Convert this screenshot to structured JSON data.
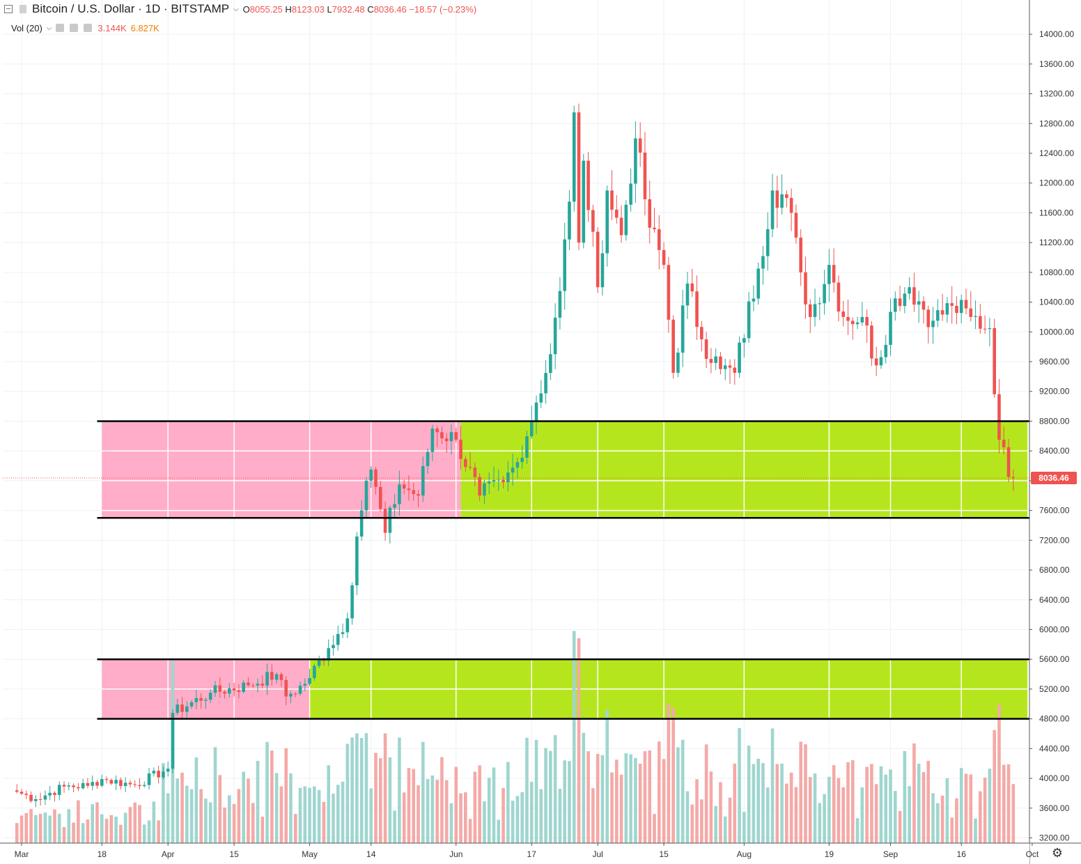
{
  "header": {
    "symbol": "Bitcoin / U.S. Dollar · 1D · BITSTAMP",
    "open_label": "O",
    "open": "8055.25",
    "high_label": "H",
    "high": "8123.03",
    "low_label": "L",
    "low": "7932.48",
    "close_label": "C",
    "close": "8036.46",
    "change": "−18.57 (−0.23%)",
    "vol_label": "Vol (20)",
    "vol_value": "3.144K",
    "vol_ma": "6.827K"
  },
  "price_tag": "8036.46",
  "colors": {
    "up": "#26a69a",
    "down": "#ef5350",
    "vol_up": "#9fd6cf",
    "vol_down": "#f4a9a6",
    "zone_pink": "#ffadc8",
    "zone_green": "#b5e61d",
    "vol_ma_text": "#f57c00"
  },
  "chart_data": {
    "type": "candlestick",
    "y_ticks": [
      "14000.00",
      "13600.00",
      "13200.00",
      "12800.00",
      "12400.00",
      "12000.00",
      "11600.00",
      "11200.00",
      "10800.00",
      "10400.00",
      "10000.00",
      "9600.00",
      "9200.00",
      "8800.00",
      "8400.00",
      "8000.00",
      "7600.00",
      "7200.00",
      "6800.00",
      "6400.00",
      "6000.00",
      "5600.00",
      "5200.00",
      "4800.00",
      "4400.00",
      "4000.00",
      "3600.00",
      "3200.00"
    ],
    "ylim": [
      3130,
      14460
    ],
    "x_labels": [
      {
        "label": "Mar",
        "date": "2019-03-01"
      },
      {
        "label": "18",
        "date": "2019-03-18"
      },
      {
        "label": "Apr",
        "date": "2019-04-01"
      },
      {
        "label": "15",
        "date": "2019-04-15"
      },
      {
        "label": "May",
        "date": "2019-05-01"
      },
      {
        "label": "14",
        "date": "2019-05-14"
      },
      {
        "label": "Jun",
        "date": "2019-06-01"
      },
      {
        "label": "17",
        "date": "2019-06-17"
      },
      {
        "label": "Jul",
        "date": "2019-07-01"
      },
      {
        "label": "15",
        "date": "2019-07-15"
      },
      {
        "label": "Aug",
        "date": "2019-08-01"
      },
      {
        "label": "19",
        "date": "2019-08-19"
      },
      {
        "label": "Sep",
        "date": "2019-09-01"
      },
      {
        "label": "16",
        "date": "2019-09-16"
      },
      {
        "label": "Oct",
        "date": "2019-10-01"
      }
    ],
    "first_date": "2019-02-28",
    "last_date": "2019-09-27",
    "anchors": [
      [
        "2019-02-28",
        3820
      ],
      [
        "2019-03-04",
        3720
      ],
      [
        "2019-03-10",
        3890
      ],
      [
        "2019-03-15",
        3900
      ],
      [
        "2019-03-18",
        3990
      ],
      [
        "2019-03-25",
        3910
      ],
      [
        "2019-04-01",
        4130
      ],
      [
        "2019-04-02",
        4880
      ],
      [
        "2019-04-10",
        5150
      ],
      [
        "2019-04-18",
        5250
      ],
      [
        "2019-04-24",
        5400
      ],
      [
        "2019-04-26",
        5100
      ],
      [
        "2019-04-30",
        5270
      ],
      [
        "2019-05-05",
        5750
      ],
      [
        "2019-05-09",
        6150
      ],
      [
        "2019-05-11",
        7250
      ],
      [
        "2019-05-13",
        8000
      ],
      [
        "2019-05-14",
        8150
      ],
      [
        "2019-05-17",
        7300
      ],
      [
        "2019-05-20",
        7950
      ],
      [
        "2019-05-24",
        7800
      ],
      [
        "2019-05-27",
        8700
      ],
      [
        "2019-06-01",
        8550
      ],
      [
        "2019-06-06",
        7800
      ],
      [
        "2019-06-11",
        7980
      ],
      [
        "2019-06-14",
        8250
      ],
      [
        "2019-06-18",
        9050
      ],
      [
        "2019-06-21",
        9700
      ],
      [
        "2019-06-23",
        10550
      ],
      [
        "2019-06-25",
        11750
      ],
      [
        "2019-06-26",
        12950
      ],
      [
        "2019-06-27",
        11200
      ],
      [
        "2019-06-28",
        12300
      ],
      [
        "2019-07-01",
        10600
      ],
      [
        "2019-07-03",
        11900
      ],
      [
        "2019-07-06",
        11300
      ],
      [
        "2019-07-09",
        12600
      ],
      [
        "2019-07-12",
        11400
      ],
      [
        "2019-07-15",
        10900
      ],
      [
        "2019-07-17",
        9450
      ],
      [
        "2019-07-20",
        10650
      ],
      [
        "2019-07-23",
        9900
      ],
      [
        "2019-07-27",
        9500
      ],
      [
        "2019-07-30",
        9450
      ],
      [
        "2019-08-04",
        10850
      ],
      [
        "2019-08-07",
        11900
      ],
      [
        "2019-08-10",
        11800
      ],
      [
        "2019-08-13",
        10800
      ],
      [
        "2019-08-15",
        10200
      ],
      [
        "2019-08-19",
        10900
      ],
      [
        "2019-08-22",
        10200
      ],
      [
        "2019-08-26",
        10200
      ],
      [
        "2019-08-29",
        9550
      ],
      [
        "2019-09-02",
        10450
      ],
      [
        "2019-09-05",
        10600
      ],
      [
        "2019-09-10",
        10150
      ],
      [
        "2019-09-14",
        10350
      ],
      [
        "2019-09-18",
        10200
      ],
      [
        "2019-09-22",
        10050
      ],
      [
        "2019-09-24",
        8550
      ],
      [
        "2019-09-25",
        8450
      ],
      [
        "2019-09-26",
        8050
      ],
      [
        "2019-09-27",
        8036
      ]
    ],
    "volume_spikes": [
      {
        "date": "2019-04-02",
        "value": 25
      },
      {
        "date": "2019-05-11",
        "value": 15
      },
      {
        "date": "2019-05-17",
        "value": 15
      },
      {
        "date": "2019-06-26",
        "value": 29
      },
      {
        "date": "2019-06-27",
        "value": 28
      },
      {
        "date": "2019-09-24",
        "value": 19
      }
    ],
    "zones": [
      {
        "name": "upper-range",
        "top": 8800,
        "bottom": 7500,
        "pink_from": "2019-03-18",
        "pink_to": "2019-06-02",
        "green_to": "2019-09-30",
        "line_from": "2019-03-17",
        "line_to": "2019-10-03"
      },
      {
        "name": "lower-range",
        "top": 5600,
        "bottom": 4800,
        "pink_from": "2019-03-18",
        "pink_to": "2019-05-01",
        "green_to": "2019-09-30",
        "line_from": "2019-03-17",
        "line_to": "2019-10-03"
      }
    ]
  }
}
